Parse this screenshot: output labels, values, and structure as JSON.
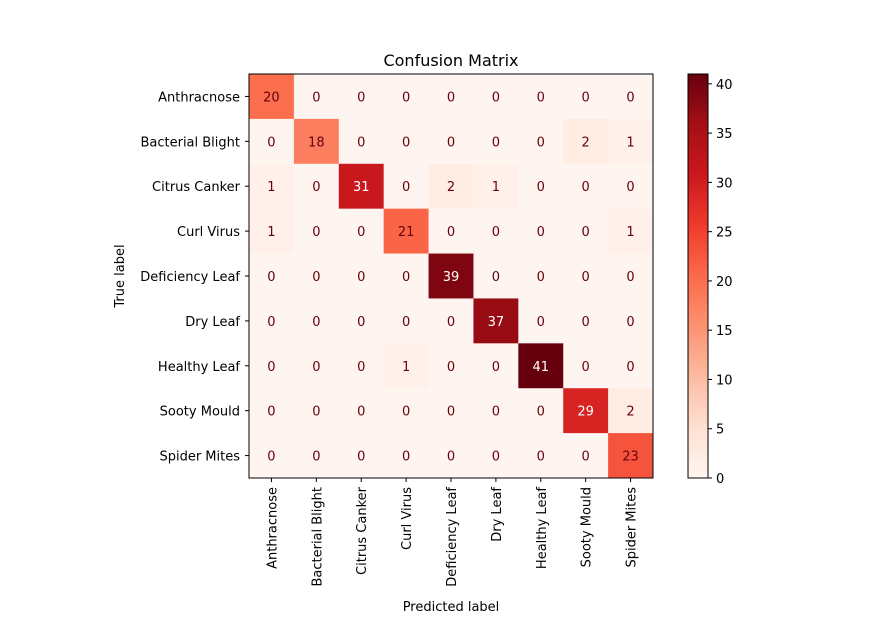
{
  "chart_data": {
    "type": "heatmap",
    "title": "Confusion Matrix",
    "xlabel": "Predicted label",
    "ylabel": "True label",
    "labels": [
      "Anthracnose",
      "Bacterial Blight",
      "Citrus Canker",
      "Curl Virus",
      "Deficiency Leaf",
      "Dry Leaf",
      "Healthy Leaf",
      "Sooty Mould",
      "Spider Mites"
    ],
    "matrix": [
      [
        20,
        0,
        0,
        0,
        0,
        0,
        0,
        0,
        0
      ],
      [
        0,
        18,
        0,
        0,
        0,
        0,
        0,
        2,
        1
      ],
      [
        1,
        0,
        31,
        0,
        2,
        1,
        0,
        0,
        0
      ],
      [
        1,
        0,
        0,
        21,
        0,
        0,
        0,
        0,
        1
      ],
      [
        0,
        0,
        0,
        0,
        39,
        0,
        0,
        0,
        0
      ],
      [
        0,
        0,
        0,
        0,
        0,
        37,
        0,
        0,
        0
      ],
      [
        0,
        0,
        0,
        1,
        0,
        0,
        41,
        0,
        0
      ],
      [
        0,
        0,
        0,
        0,
        0,
        0,
        0,
        29,
        2
      ],
      [
        0,
        0,
        0,
        0,
        0,
        0,
        0,
        0,
        23
      ]
    ],
    "colormap": "Reds",
    "colorbar": {
      "range": [
        0,
        41
      ],
      "ticks": [
        0,
        5,
        10,
        15,
        20,
        25,
        30,
        35,
        40
      ]
    },
    "grid": false
  }
}
